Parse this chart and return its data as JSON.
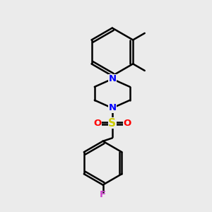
{
  "background_color": "#ebebeb",
  "bond_color": "#000000",
  "N_color": "#0000ff",
  "S_color": "#cccc00",
  "O_color": "#ff0000",
  "F_color": "#cc44cc",
  "bond_width": 1.8,
  "fig_size": [
    3.0,
    3.0
  ],
  "dpi": 100,
  "xlim": [
    0,
    10
  ],
  "ylim": [
    0,
    10
  ]
}
